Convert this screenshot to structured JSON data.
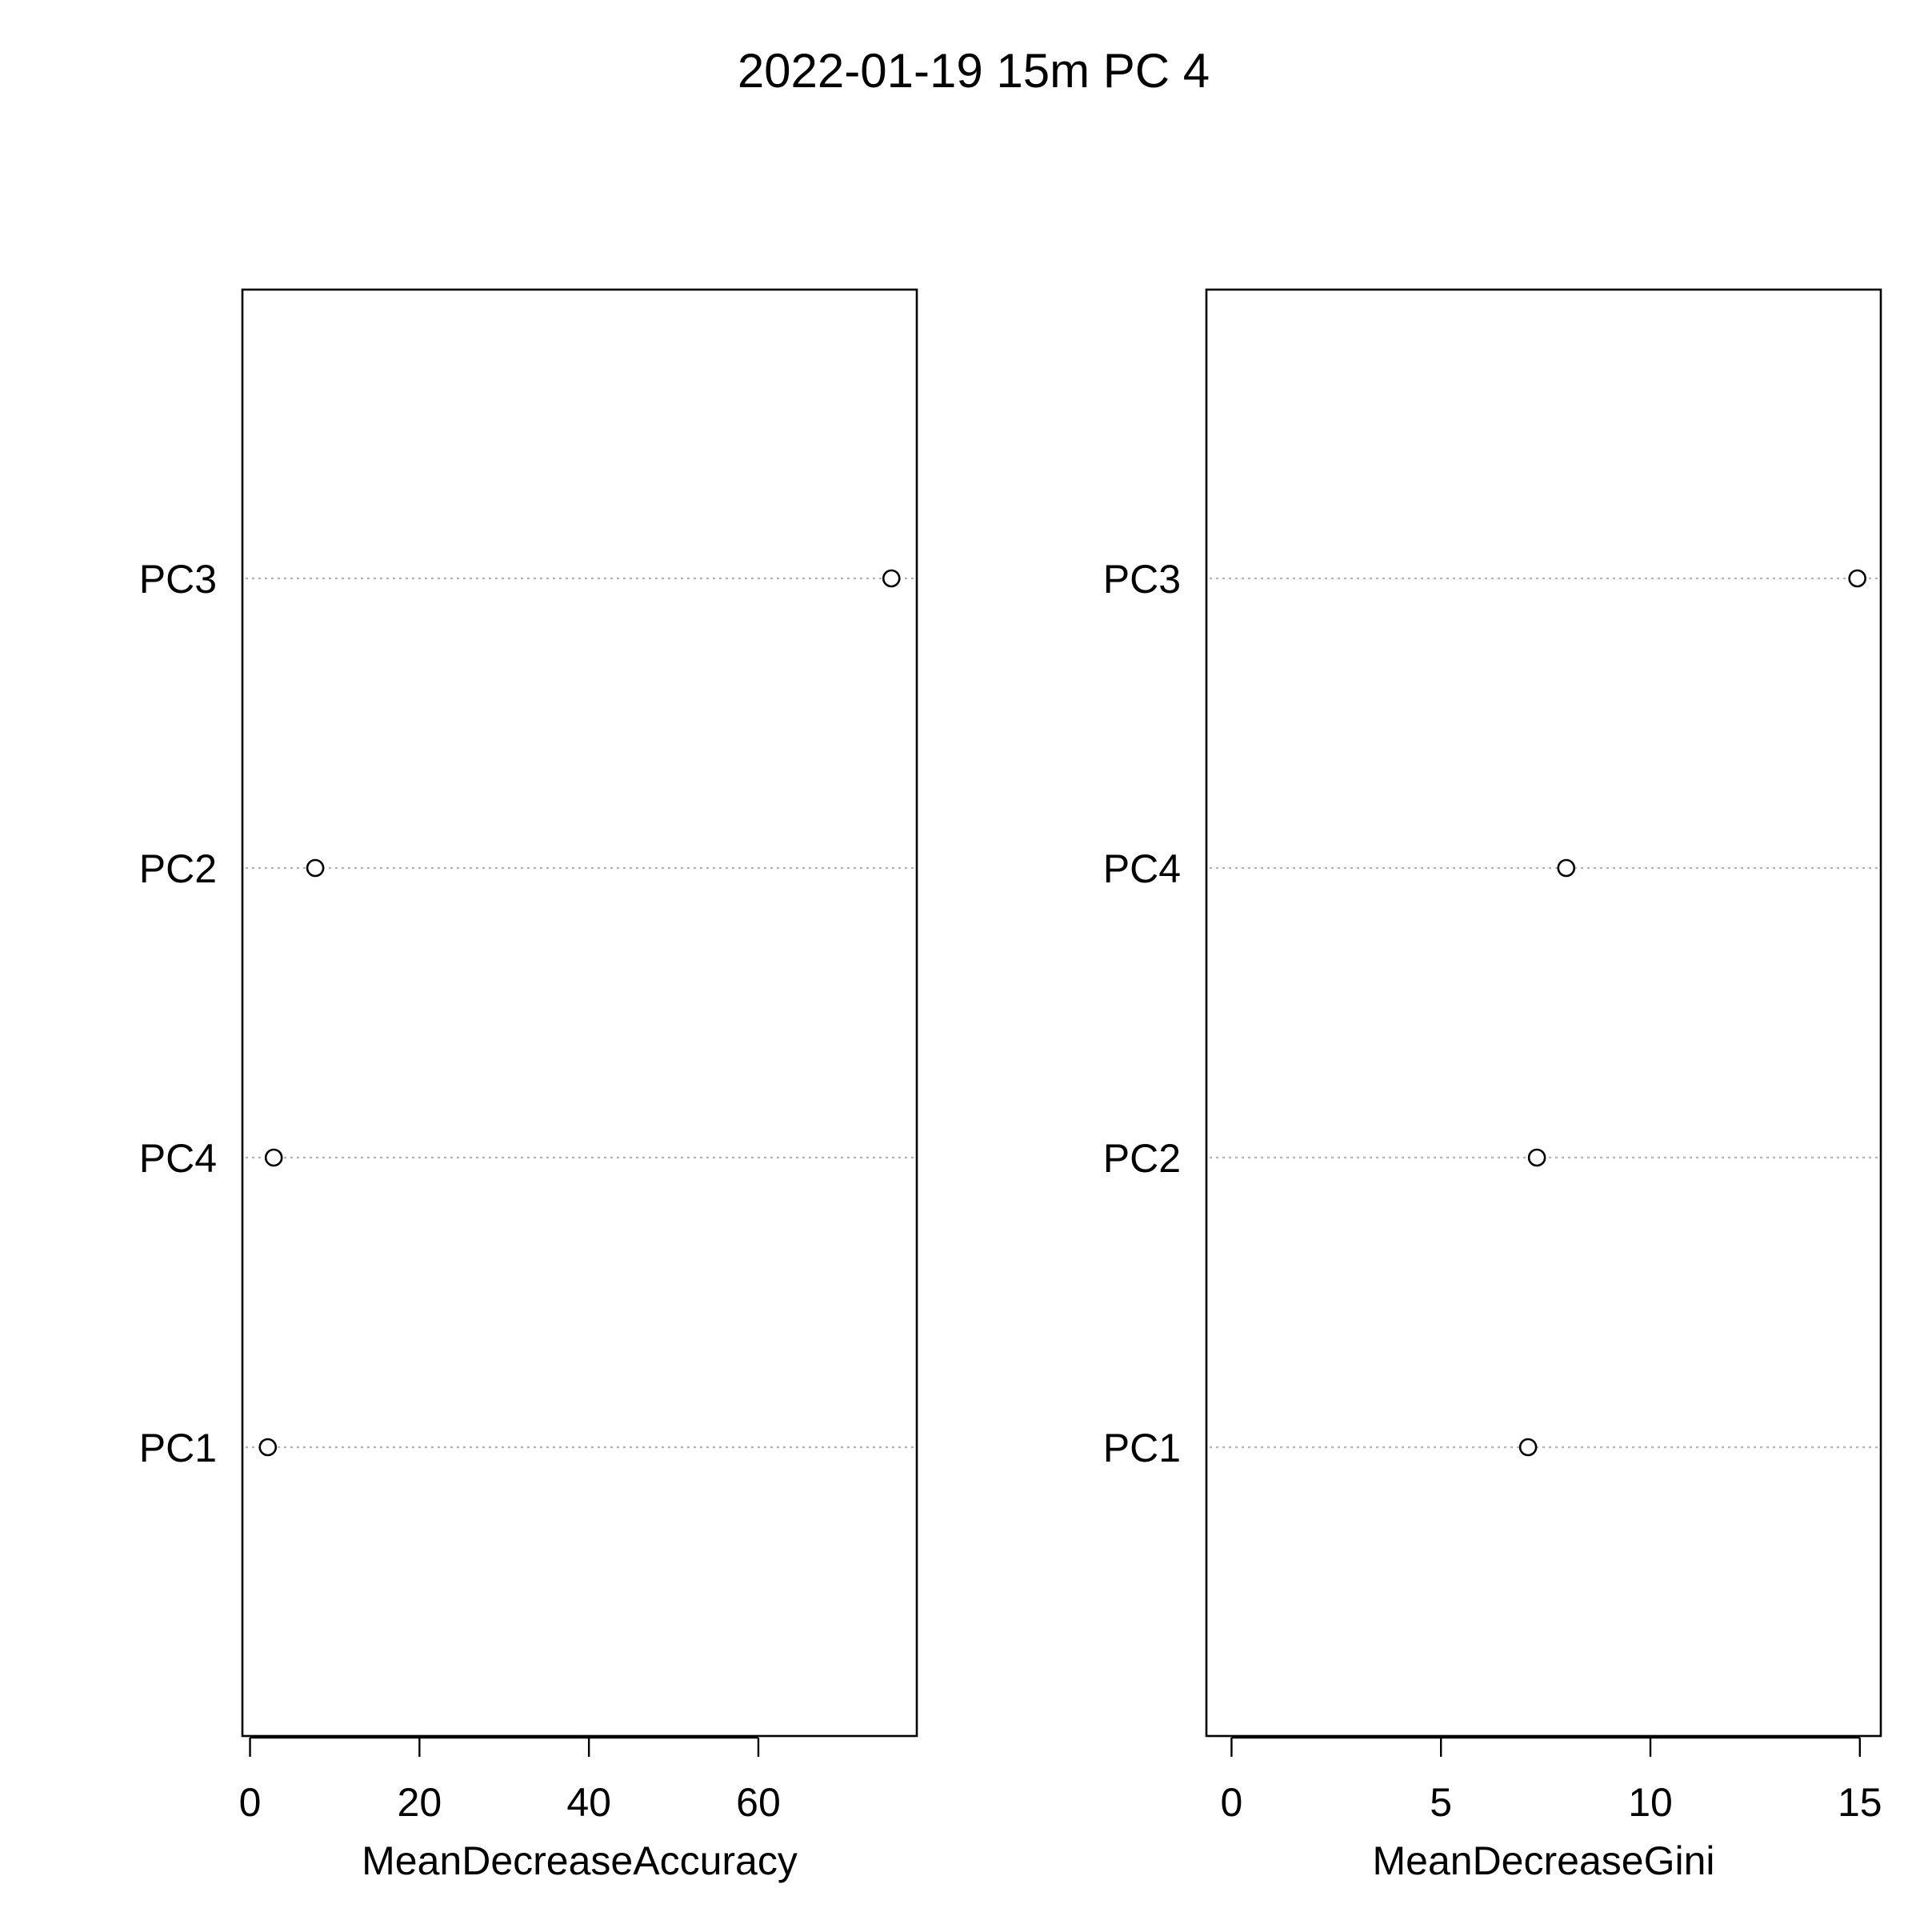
{
  "chart_data": [
    {
      "type": "scatter",
      "title": "2022-01-19 15m PC 4",
      "xlabel": "MeanDecreaseAccuracy",
      "ylabel": "",
      "categories": [
        "PC3",
        "PC2",
        "PC4",
        "PC1"
      ],
      "values": [
        75.7,
        7.7,
        2.8,
        2.1
      ],
      "xticks": [
        "0",
        "20",
        "40",
        "60"
      ],
      "xlim": [
        -0.9,
        78.7
      ],
      "grid": "dotted horizontal guide lines",
      "colors": {
        "point_fill": "#ffffff",
        "point_stroke": "#000000",
        "guide": "#b3b3b3"
      }
    },
    {
      "type": "scatter",
      "xlabel": "MeanDecreaseGini",
      "ylabel": "",
      "categories": [
        "PC3",
        "PC4",
        "PC2",
        "PC1"
      ],
      "values": [
        14.94,
        7.99,
        7.29,
        7.08
      ],
      "xticks": [
        "0",
        "5",
        "10",
        "15"
      ],
      "xlim": [
        -0.6,
        15.5
      ],
      "grid": "dotted horizontal guide lines",
      "colors": {
        "point_fill": "#ffffff",
        "point_stroke": "#000000",
        "guide": "#b3b3b3"
      }
    }
  ]
}
